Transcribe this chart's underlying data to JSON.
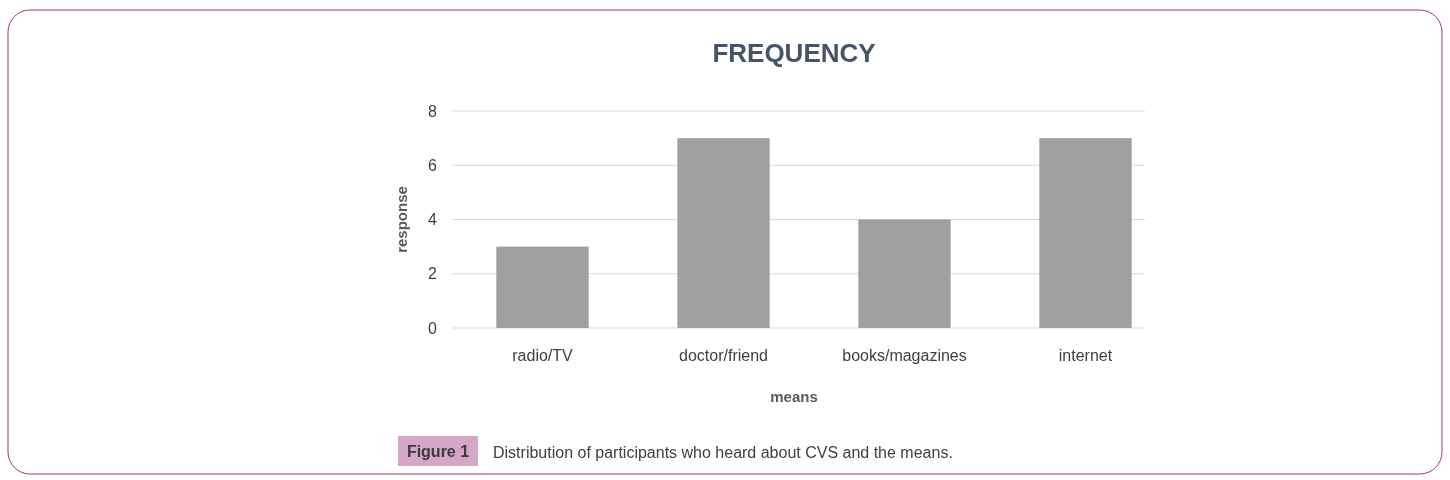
{
  "chart_data": {
    "type": "bar",
    "title": "FREQUENCY",
    "xlabel": "means",
    "ylabel": "response",
    "categories": [
      "radio/TV",
      "doctor/friend",
      "books/magazines",
      "internet"
    ],
    "values": [
      3,
      7,
      4,
      7
    ],
    "color": "#a0a0a0",
    "ylim": [
      0,
      8
    ],
    "yticks": [
      0,
      2,
      4,
      6,
      8
    ],
    "grid": "y",
    "annotations": [
      "Figure 1",
      "Distribution of participants who heard about CVS and the means."
    ]
  }
}
